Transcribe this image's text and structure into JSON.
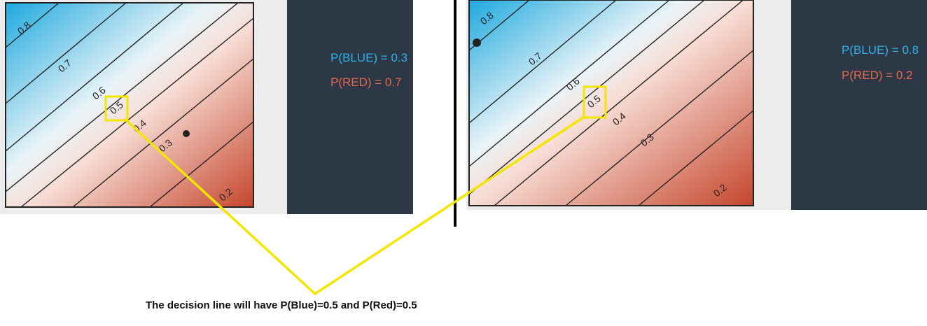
{
  "panels": [
    {
      "contour_labels": [
        "0.8",
        "0.7",
        "0.6",
        "0.5",
        "0.4",
        "0.3",
        "0.2"
      ],
      "p_blue": "P(BLUE) = 0.3",
      "p_red": "P(RED) = 0.7"
    },
    {
      "contour_labels": [
        "0.8",
        "0.7",
        "0.6",
        "0.5",
        "0.4",
        "0.3",
        "0.2"
      ],
      "p_blue": "P(BLUE) = 0.8",
      "p_red": "P(RED) = 0.2"
    }
  ],
  "caption": "The decision line will have P(Blue)=0.5 and P(Red)=0.5",
  "colors": {
    "blue": "#29b1e3",
    "red": "#c94e33",
    "blue_text": "#2bb3ea",
    "red_text": "#e5684a",
    "info_bg": "#2d3846",
    "highlight": "#ffee00"
  }
}
